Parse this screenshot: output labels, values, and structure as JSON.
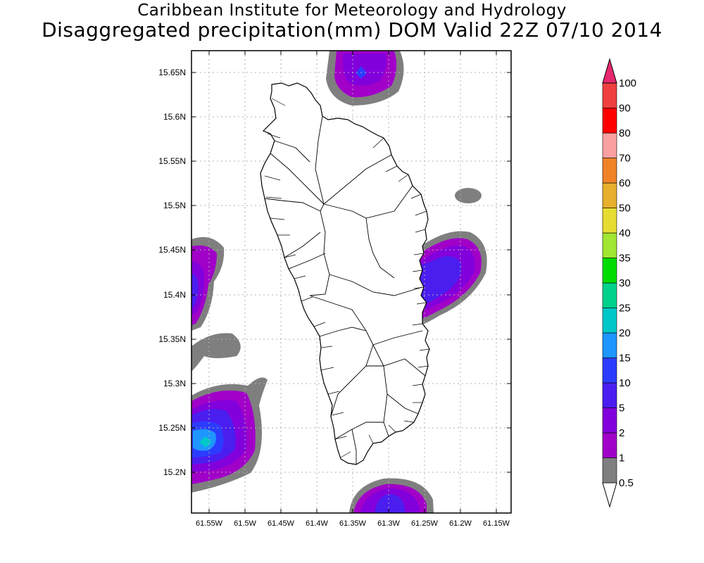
{
  "header": {
    "institute": "Caribbean Institute for Meteorology and Hydrology",
    "product": "Disaggregated precipitation(mm) DOM Valid 22Z 07/10 2014"
  },
  "map": {
    "lat_ticks": [
      "15.65N",
      "15.6N",
      "15.55N",
      "15.5N",
      "15.45N",
      "15.4N",
      "15.35N",
      "15.3N",
      "15.25N",
      "15.2N"
    ],
    "lon_ticks": [
      "61.55W",
      "61.5W",
      "61.45W",
      "61.4W",
      "61.35W",
      "61.3W",
      "61.25W",
      "61.2W",
      "61.15W"
    ],
    "grid": true
  },
  "colorbar": {
    "levels": [
      "0.5",
      "1",
      "2",
      "5",
      "10",
      "15",
      "20",
      "25",
      "30",
      "35",
      "40",
      "50",
      "60",
      "70",
      "80",
      "90",
      "100"
    ],
    "colors": [
      "#7f7f7f",
      "#a100c8",
      "#8200dc",
      "#4b1ef0",
      "#2c3cff",
      "#1e96ff",
      "#00c8c8",
      "#00d28c",
      "#00dc00",
      "#a0e632",
      "#e6dc32",
      "#e6af2d",
      "#f08228",
      "#faa0a0",
      "#ff0000",
      "#f04040",
      "#e6286e"
    ]
  }
}
